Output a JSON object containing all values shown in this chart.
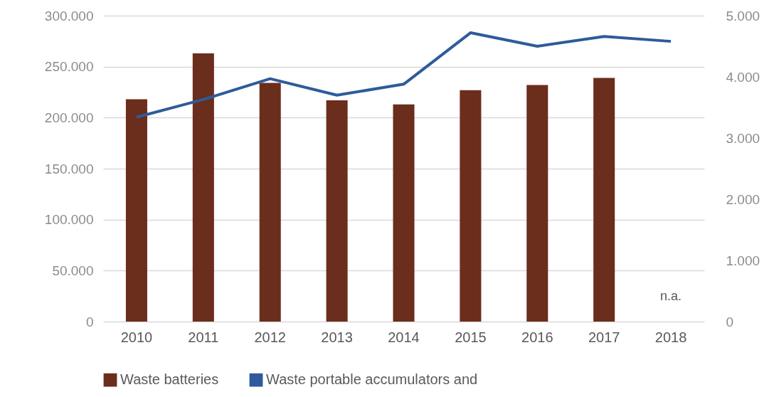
{
  "chart_data": {
    "type": "bar",
    "categories": [
      "2010",
      "2011",
      "2012",
      "2013",
      "2014",
      "2015",
      "2016",
      "2017",
      "2018"
    ],
    "series": [
      {
        "name": "Waste batteries",
        "color": "#6b2d1c",
        "values": [
          218000,
          263000,
          234000,
          217000,
          213000,
          227000,
          232000,
          239000,
          null
        ]
      },
      {
        "name": "Waste portable accumulators and",
        "type": "line",
        "axis": "y2",
        "color": "#2e5b9a",
        "values": [
          3340,
          3630,
          3970,
          3700,
          3880,
          4720,
          4500,
          4660,
          4580
        ]
      }
    ],
    "ylim": [
      0,
      300000
    ],
    "yticks": [
      0,
      {
        "value": 50000,
        "label": "50.000"
      },
      {
        "value": 100000,
        "label": "100.000"
      },
      {
        "value": 150000,
        "label": "150.000"
      },
      {
        "value": 200000,
        "label": "200.000"
      },
      {
        "value": 250000,
        "label": "250.000"
      },
      {
        "value": 300000,
        "label": "300.000"
      }
    ],
    "y2lim": [
      0,
      5000
    ],
    "y2ticks": [
      0,
      {
        "value": 1000,
        "label": "1.000"
      },
      {
        "value": 2000,
        "label": "2.000"
      },
      {
        "value": 3000,
        "label": "3.000"
      },
      {
        "value": 4000,
        "label": "4.000"
      },
      {
        "value": 5000,
        "label": "5.000"
      }
    ],
    "annotations": [
      "n.a."
    ],
    "grid": "y",
    "legend": "bottom",
    "marker": "none",
    "line_style": "solid"
  }
}
